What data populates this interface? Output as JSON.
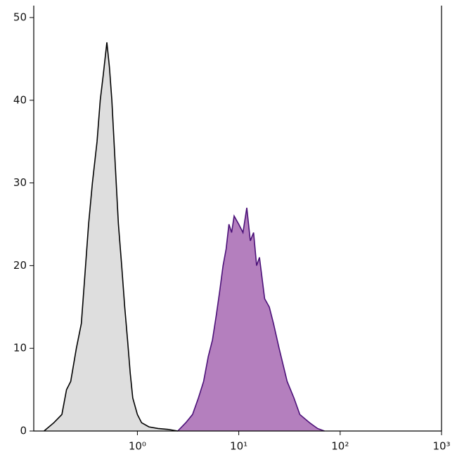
{
  "chart_data": {
    "type": "area",
    "xscale": "log",
    "xlim": [
      0.095,
      1000
    ],
    "ylim": [
      0,
      50
    ],
    "xticks": [
      {
        "value": 1,
        "label": "10⁰"
      },
      {
        "value": 10,
        "label": "10¹"
      },
      {
        "value": 100,
        "label": "10²"
      },
      {
        "value": 1000,
        "label": "10³"
      }
    ],
    "yticks": [
      0,
      10,
      20,
      30,
      40,
      50
    ],
    "series": [
      {
        "color": "#000000",
        "fill": "#dedede",
        "x": [
          0.12,
          0.15,
          0.18,
          0.2,
          0.22,
          0.25,
          0.28,
          0.3,
          0.33,
          0.36,
          0.4,
          0.43,
          0.46,
          0.5,
          0.53,
          0.56,
          0.6,
          0.65,
          0.7,
          0.75,
          0.8,
          0.85,
          0.9,
          1.0,
          1.1,
          1.3,
          1.6,
          2.0,
          2.5
        ],
        "values": [
          0,
          1,
          2,
          5,
          6,
          10,
          13,
          18,
          25,
          30,
          35,
          40,
          43,
          47,
          44,
          40,
          33,
          25,
          20,
          15,
          11,
          7,
          4,
          2,
          1,
          0.5,
          0.3,
          0.2,
          0
        ]
      },
      {
        "color": "#4b1078",
        "fill": "#b47fbe",
        "x": [
          2.5,
          3,
          3.5,
          4,
          4.5,
          5,
          5.5,
          6,
          6.5,
          7,
          7.5,
          8,
          8.5,
          9,
          10,
          11,
          12,
          13,
          14,
          15,
          16,
          18,
          20,
          22,
          25,
          30,
          35,
          40,
          50,
          60,
          70
        ],
        "values": [
          0,
          1,
          2,
          4,
          6,
          9,
          11,
          14,
          17,
          20,
          22,
          25,
          24,
          26,
          25,
          24,
          27,
          23,
          24,
          20,
          21,
          16,
          15,
          13,
          10,
          6,
          4,
          2,
          1,
          0.3,
          0
        ]
      }
    ]
  }
}
